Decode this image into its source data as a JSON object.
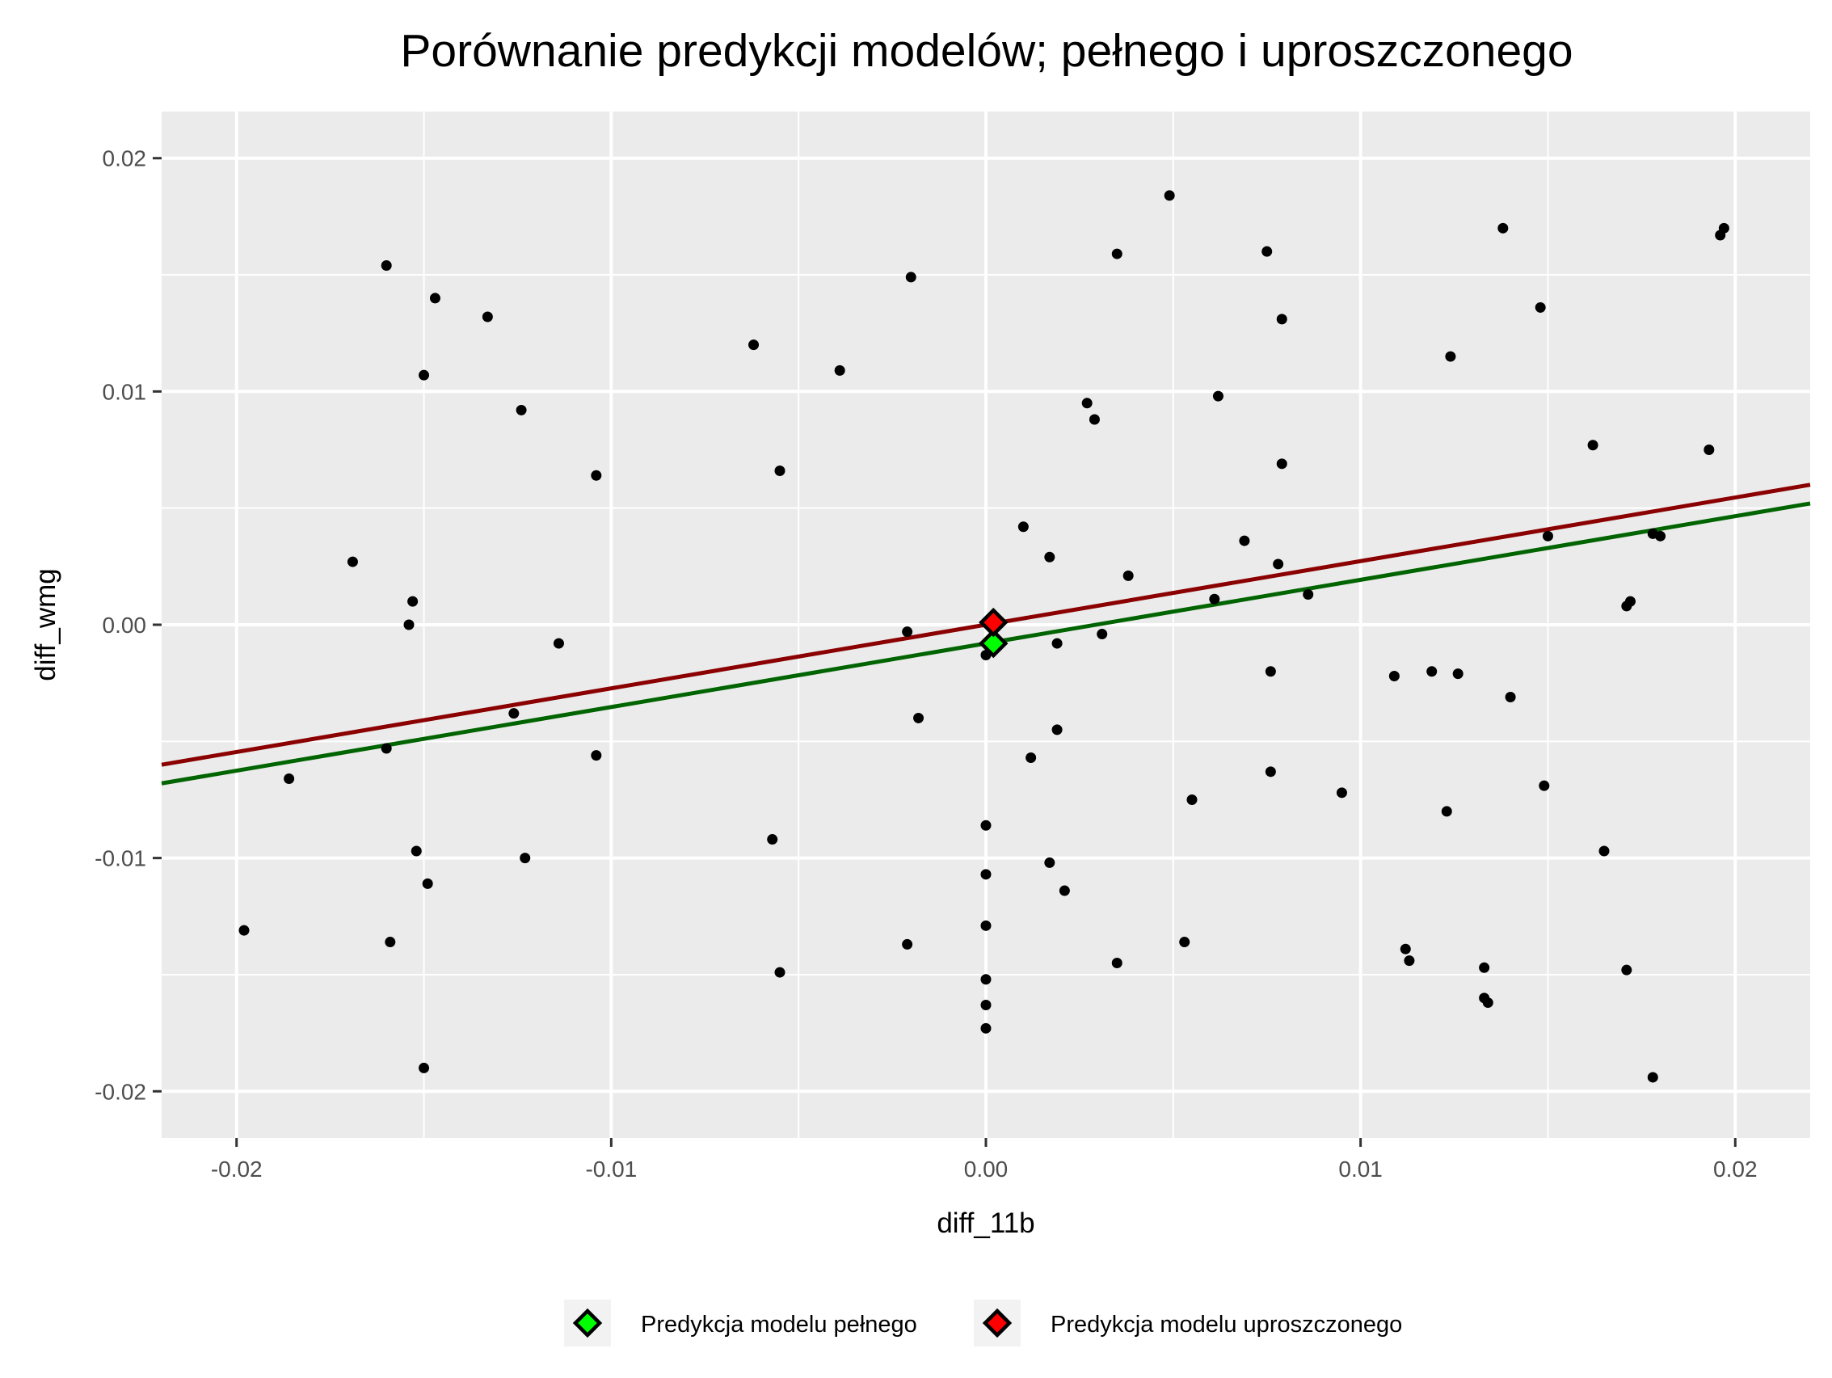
{
  "chart_data": {
    "type": "scatter",
    "title": "Porównanie predykcji modelów; pełnego i uproszczonego",
    "xlabel": "diff_11b",
    "ylabel": "diff_wmg",
    "xlim": [
      -0.022,
      0.022
    ],
    "ylim": [
      -0.022,
      0.022
    ],
    "x_ticks": [
      -0.02,
      -0.01,
      0.0,
      0.01,
      0.02
    ],
    "x_tick_labels": [
      "-0.02",
      "-0.01",
      "0.00",
      "0.01",
      "0.02"
    ],
    "y_ticks": [
      -0.02,
      -0.01,
      0.0,
      0.01,
      0.02
    ],
    "y_tick_labels": [
      "-0.02",
      "-0.01",
      "0.00",
      "0.01",
      "0.02"
    ],
    "grid": true,
    "background": "#ebebeb",
    "points": [
      [
        -0.016,
        0.0154
      ],
      [
        -0.0147,
        0.014
      ],
      [
        -0.0133,
        0.0132
      ],
      [
        -0.015,
        0.0107
      ],
      [
        -0.0124,
        0.0092
      ],
      [
        -0.0104,
        0.0064
      ],
      [
        -0.0169,
        0.0027
      ],
      [
        -0.0153,
        0.001
      ],
      [
        -0.0154,
        0.0
      ],
      [
        -0.0114,
        -0.0008
      ],
      [
        -0.0126,
        -0.0038
      ],
      [
        -0.016,
        -0.0053
      ],
      [
        -0.0186,
        -0.0066
      ],
      [
        -0.0104,
        -0.0056
      ],
      [
        -0.0152,
        -0.0097
      ],
      [
        -0.0149,
        -0.0111
      ],
      [
        -0.0123,
        -0.01
      ],
      [
        -0.0198,
        -0.0131
      ],
      [
        -0.0159,
        -0.0136
      ],
      [
        -0.015,
        -0.019
      ],
      [
        -0.0062,
        0.012
      ],
      [
        -0.0039,
        0.0109
      ],
      [
        -0.0055,
        0.0066
      ],
      [
        -0.002,
        0.0149
      ],
      [
        -0.0021,
        -0.0003
      ],
      [
        -0.0018,
        -0.004
      ],
      [
        -0.0057,
        -0.0092
      ],
      [
        -0.0055,
        -0.0149
      ],
      [
        -0.0021,
        -0.0137
      ],
      [
        0.0,
        -0.0013
      ],
      [
        0.0,
        -0.0086
      ],
      [
        0.0,
        -0.0107
      ],
      [
        0.0,
        -0.0129
      ],
      [
        0.0,
        -0.0152
      ],
      [
        0.0,
        -0.0163
      ],
      [
        0.0,
        -0.0173
      ],
      [
        0.0049,
        0.0184
      ],
      [
        0.0035,
        0.0159
      ],
      [
        0.0027,
        0.0095
      ],
      [
        0.0029,
        0.0088
      ],
      [
        0.001,
        0.0042
      ],
      [
        0.0017,
        0.0029
      ],
      [
        0.0038,
        0.0021
      ],
      [
        0.0031,
        -0.0004
      ],
      [
        0.0019,
        -0.0008
      ],
      [
        0.0019,
        -0.0045
      ],
      [
        0.0012,
        -0.0057
      ],
      [
        0.0017,
        -0.0102
      ],
      [
        0.0021,
        -0.0114
      ],
      [
        0.0035,
        -0.0145
      ],
      [
        0.0053,
        -0.0136
      ],
      [
        0.0055,
        -0.0075
      ],
      [
        0.0075,
        0.016
      ],
      [
        0.0079,
        0.0131
      ],
      [
        0.0062,
        0.0098
      ],
      [
        0.0079,
        0.0069
      ],
      [
        0.0069,
        0.0036
      ],
      [
        0.0078,
        0.0026
      ],
      [
        0.0086,
        0.0013
      ],
      [
        0.0061,
        0.0011
      ],
      [
        0.0076,
        -0.002
      ],
      [
        0.0076,
        -0.0063
      ],
      [
        0.0095,
        -0.0072
      ],
      [
        0.0138,
        0.017
      ],
      [
        0.0148,
        0.0136
      ],
      [
        0.0124,
        0.0115
      ],
      [
        0.0109,
        -0.0022
      ],
      [
        0.0119,
        -0.002
      ],
      [
        0.0126,
        -0.0021
      ],
      [
        0.014,
        -0.0031
      ],
      [
        0.0123,
        -0.008
      ],
      [
        0.0112,
        -0.0139
      ],
      [
        0.0113,
        -0.0144
      ],
      [
        0.0133,
        -0.0147
      ],
      [
        0.0133,
        -0.016
      ],
      [
        0.0134,
        -0.0162
      ],
      [
        0.015,
        0.0038
      ],
      [
        0.0149,
        -0.0069
      ],
      [
        0.0162,
        0.0077
      ],
      [
        0.0193,
        0.0075
      ],
      [
        0.0196,
        0.0167
      ],
      [
        0.0197,
        0.017
      ],
      [
        0.0171,
        0.0008
      ],
      [
        0.0172,
        0.001
      ],
      [
        0.0178,
        0.0039
      ],
      [
        0.018,
        0.0038
      ],
      [
        0.0165,
        -0.0097
      ],
      [
        0.0171,
        -0.0148
      ],
      [
        0.0178,
        -0.0194
      ]
    ],
    "lines": [
      {
        "name": "Predykcja modelu pełnego",
        "color": "#006400",
        "x": [
          -0.022,
          0.022
        ],
        "y": [
          -0.0068,
          0.0052
        ]
      },
      {
        "name": "Predykcja modelu uproszczonego",
        "color": "#8b0000",
        "x": [
          -0.022,
          0.022
        ],
        "y": [
          -0.006,
          0.006
        ]
      }
    ],
    "highlighted": [
      {
        "name": "Predykcja modelu pełnego",
        "color": "#00ff00",
        "x": 0.0002,
        "y": -0.0008
      },
      {
        "name": "Predykcja modelu uproszczonego",
        "color": "#ff0000",
        "x": 0.0002,
        "y": 0.0001
      }
    ],
    "legend": {
      "position": "bottom",
      "items": [
        {
          "label": "Predykcja modelu pełnego",
          "color": "#00ff00"
        },
        {
          "label": "Predykcja modelu uproszczonego",
          "color": "#ff0000"
        }
      ]
    }
  }
}
